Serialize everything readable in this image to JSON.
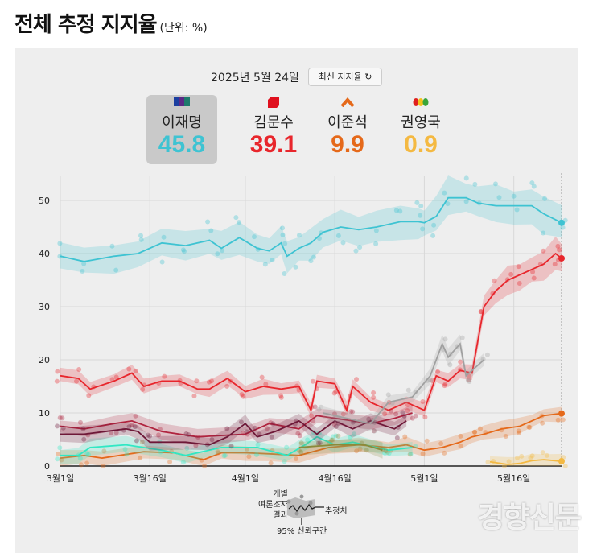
{
  "header": {
    "title": "전체 추정 지지율",
    "unit": "(단위: %)"
  },
  "controls": {
    "date": "2025년 5월 24일",
    "latest_button": "최신 지지율",
    "refresh_icon": "refresh-icon"
  },
  "candidates": [
    {
      "name": "이재명",
      "value": "45.8",
      "color": "#3ec3d2",
      "icon": "party-flag-icon",
      "selected": true
    },
    {
      "name": "김문수",
      "value": "39.1",
      "color": "#e8262c",
      "icon": "party-logo-icon",
      "selected": false
    },
    {
      "name": "이준석",
      "value": "9.9",
      "color": "#e5691a",
      "icon": "chevron-up-icon",
      "selected": false
    },
    {
      "name": "권영국",
      "value": "0.9",
      "color": "#f4b942",
      "icon": "tricolor-dots-icon",
      "selected": false
    }
  ],
  "legend": {
    "individual_polls": "개별\n여론조사\n결과",
    "estimate": "추정치",
    "ci": "95% 신뢰구간"
  },
  "watermark": "경향신문",
  "chart_data": {
    "type": "line",
    "ylim": [
      0,
      52
    ],
    "yticks": [
      0,
      10,
      20,
      30,
      40,
      50
    ],
    "xlim": [
      "2025-03-01",
      "2025-05-24"
    ],
    "xticks": [
      {
        "date": "2025-03-01",
        "label": "3월1일"
      },
      {
        "date": "2025-03-16",
        "label": "3월16일"
      },
      {
        "date": "2025-04-01",
        "label": "4월1일"
      },
      {
        "date": "2025-04-16",
        "label": "4월16일"
      },
      {
        "date": "2025-05-01",
        "label": "5월1일"
      },
      {
        "date": "2025-05-16",
        "label": "5월16일"
      }
    ],
    "grid": true,
    "confidence_band": "95%",
    "series": [
      {
        "name": "이재명",
        "color": "#3ec3d2",
        "points": [
          [
            "2025-03-01",
            39.5
          ],
          [
            "2025-03-05",
            38.5
          ],
          [
            "2025-03-10",
            39.5
          ],
          [
            "2025-03-14",
            40
          ],
          [
            "2025-03-18",
            42
          ],
          [
            "2025-03-22",
            41.5
          ],
          [
            "2025-03-26",
            42.5
          ],
          [
            "2025-03-28",
            41
          ],
          [
            "2025-03-31",
            43
          ],
          [
            "2025-04-03",
            41
          ],
          [
            "2025-04-05",
            40.5
          ],
          [
            "2025-04-07",
            42
          ],
          [
            "2025-04-08",
            39.5
          ],
          [
            "2025-04-10",
            41
          ],
          [
            "2025-04-12",
            42
          ],
          [
            "2025-04-14",
            44
          ],
          [
            "2025-04-17",
            45
          ],
          [
            "2025-04-20",
            44.5
          ],
          [
            "2025-04-23",
            45
          ],
          [
            "2025-04-27",
            46
          ],
          [
            "2025-04-30",
            46
          ],
          [
            "2025-05-01",
            45.8
          ],
          [
            "2025-05-03",
            47
          ],
          [
            "2025-05-05",
            50.5
          ],
          [
            "2025-05-08",
            50.5
          ],
          [
            "2025-05-10",
            49.5
          ],
          [
            "2025-05-13",
            49
          ],
          [
            "2025-05-16",
            49
          ],
          [
            "2025-05-19",
            49
          ],
          [
            "2025-05-21",
            47.5
          ],
          [
            "2025-05-24",
            45.8
          ]
        ]
      },
      {
        "name": "김문수",
        "color": "#e8262c",
        "points": [
          [
            "2025-03-01",
            17
          ],
          [
            "2025-03-04",
            16.5
          ],
          [
            "2025-03-06",
            14.5
          ],
          [
            "2025-03-10",
            16
          ],
          [
            "2025-03-13",
            17.5
          ],
          [
            "2025-03-15",
            15
          ],
          [
            "2025-03-18",
            16
          ],
          [
            "2025-03-21",
            16
          ],
          [
            "2025-03-24",
            14.5
          ],
          [
            "2025-03-26",
            14.5
          ],
          [
            "2025-03-29",
            16.5
          ],
          [
            "2025-04-01",
            14
          ],
          [
            "2025-04-04",
            15
          ],
          [
            "2025-04-07",
            14.5
          ],
          [
            "2025-04-10",
            15
          ],
          [
            "2025-04-12",
            10.5
          ],
          [
            "2025-04-13",
            16
          ],
          [
            "2025-04-16",
            15.5
          ],
          [
            "2025-04-18",
            10.5
          ],
          [
            "2025-04-19",
            15
          ],
          [
            "2025-04-22",
            12
          ],
          [
            "2025-04-25",
            10.5
          ],
          [
            "2025-04-28",
            12
          ],
          [
            "2025-05-01",
            10.5
          ],
          [
            "2025-05-03",
            17
          ],
          [
            "2025-05-05",
            16
          ],
          [
            "2025-05-07",
            18
          ],
          [
            "2025-05-09",
            17.5
          ],
          [
            "2025-05-11",
            30
          ],
          [
            "2025-05-13",
            33
          ],
          [
            "2025-05-15",
            35
          ],
          [
            "2025-05-17",
            36
          ],
          [
            "2025-05-19",
            37
          ],
          [
            "2025-05-21",
            38
          ],
          [
            "2025-05-23",
            40
          ],
          [
            "2025-05-24",
            39.1
          ]
        ]
      },
      {
        "name": "이준석",
        "color": "#e5691a",
        "points": [
          [
            "2025-03-01",
            1.5
          ],
          [
            "2025-03-05",
            2
          ],
          [
            "2025-03-08",
            1.5
          ],
          [
            "2025-03-15",
            2.7
          ],
          [
            "2025-03-20",
            2.5
          ],
          [
            "2025-03-25",
            1.2
          ],
          [
            "2025-03-28",
            2.5
          ],
          [
            "2025-04-01",
            2.5
          ],
          [
            "2025-04-05",
            2.3
          ],
          [
            "2025-04-10",
            2
          ],
          [
            "2025-04-15",
            3.5
          ],
          [
            "2025-04-20",
            4
          ],
          [
            "2025-04-25",
            3.5
          ],
          [
            "2025-04-28",
            4
          ],
          [
            "2025-05-01",
            3
          ],
          [
            "2025-05-04",
            3.5
          ],
          [
            "2025-05-07",
            4.5
          ],
          [
            "2025-05-09",
            5.5
          ],
          [
            "2025-05-11",
            6
          ],
          [
            "2025-05-14",
            7
          ],
          [
            "2025-05-17",
            7.5
          ],
          [
            "2025-05-19",
            8.5
          ],
          [
            "2025-05-21",
            9.5
          ],
          [
            "2025-05-24",
            9.9
          ]
        ]
      },
      {
        "name": "권영국",
        "color": "#f4b942",
        "points": [
          [
            "2025-05-12",
            0.8
          ],
          [
            "2025-05-15",
            0.3
          ],
          [
            "2025-05-17",
            0.5
          ],
          [
            "2025-05-19",
            1
          ],
          [
            "2025-05-21",
            1.2
          ],
          [
            "2025-05-24",
            0.9
          ]
        ]
      },
      {
        "color": "#30e8c4",
        "points": [
          [
            "2025-03-01",
            2
          ],
          [
            "2025-03-04",
            2
          ],
          [
            "2025-03-06",
            3.5
          ],
          [
            "2025-03-12",
            4
          ],
          [
            "2025-03-18",
            3
          ],
          [
            "2025-03-22",
            2
          ],
          [
            "2025-03-28",
            3.5
          ],
          [
            "2025-04-03",
            3.5
          ],
          [
            "2025-04-08",
            2
          ],
          [
            "2025-04-11",
            4
          ],
          [
            "2025-04-13",
            5.5
          ],
          [
            "2025-04-16",
            4
          ],
          [
            "2025-04-19",
            4.5
          ],
          [
            "2025-04-25",
            3
          ],
          [
            "2025-04-29",
            3.5
          ]
        ]
      },
      {
        "color": "#b0243f",
        "points": [
          [
            "2025-03-01",
            7.5
          ],
          [
            "2025-03-05",
            7
          ],
          [
            "2025-03-10",
            8
          ],
          [
            "2025-03-13",
            8.5
          ],
          [
            "2025-03-18",
            6.5
          ],
          [
            "2025-03-24",
            5.5
          ],
          [
            "2025-04-01",
            6
          ],
          [
            "2025-04-05",
            8
          ],
          [
            "2025-04-10",
            7
          ],
          [
            "2025-04-13",
            9.5
          ],
          [
            "2025-04-16",
            9
          ],
          [
            "2025-04-19",
            8.5
          ],
          [
            "2025-04-22",
            8
          ],
          [
            "2025-04-26",
            9
          ],
          [
            "2025-04-29",
            10
          ]
        ]
      },
      {
        "color": "#6e1838",
        "points": [
          [
            "2025-03-01",
            6
          ],
          [
            "2025-03-05",
            6
          ],
          [
            "2025-03-12",
            7
          ],
          [
            "2025-03-14",
            6.5
          ],
          [
            "2025-03-16",
            4.5
          ],
          [
            "2025-03-22",
            4.5
          ],
          [
            "2025-03-26",
            4
          ],
          [
            "2025-03-29",
            5.5
          ],
          [
            "2025-04-01",
            8
          ],
          [
            "2025-04-03",
            5.5
          ],
          [
            "2025-04-06",
            6.5
          ],
          [
            "2025-04-10",
            8.5
          ],
          [
            "2025-04-13",
            6
          ],
          [
            "2025-04-16",
            8.5
          ],
          [
            "2025-04-19",
            7
          ],
          [
            "2025-04-22",
            8.5
          ],
          [
            "2025-04-26",
            7
          ],
          [
            "2025-04-28",
            8.5
          ]
        ]
      },
      {
        "color": "#8a8a3a",
        "points": [
          [
            "2025-04-10",
            3.5
          ],
          [
            "2025-04-16",
            4
          ],
          [
            "2025-04-21",
            4
          ],
          [
            "2025-04-24",
            3
          ]
        ]
      },
      {
        "color": "#a0a0a0",
        "points": [
          [
            "2025-04-14",
            10
          ],
          [
            "2025-04-22",
            8
          ],
          [
            "2025-04-25",
            12
          ],
          [
            "2025-04-29",
            13
          ],
          [
            "2025-05-02",
            17
          ],
          [
            "2025-05-04",
            23
          ],
          [
            "2025-05-05",
            20.5
          ],
          [
            "2025-05-07",
            23
          ],
          [
            "2025-05-08",
            17
          ],
          [
            "2025-05-11",
            20
          ]
        ]
      }
    ]
  }
}
